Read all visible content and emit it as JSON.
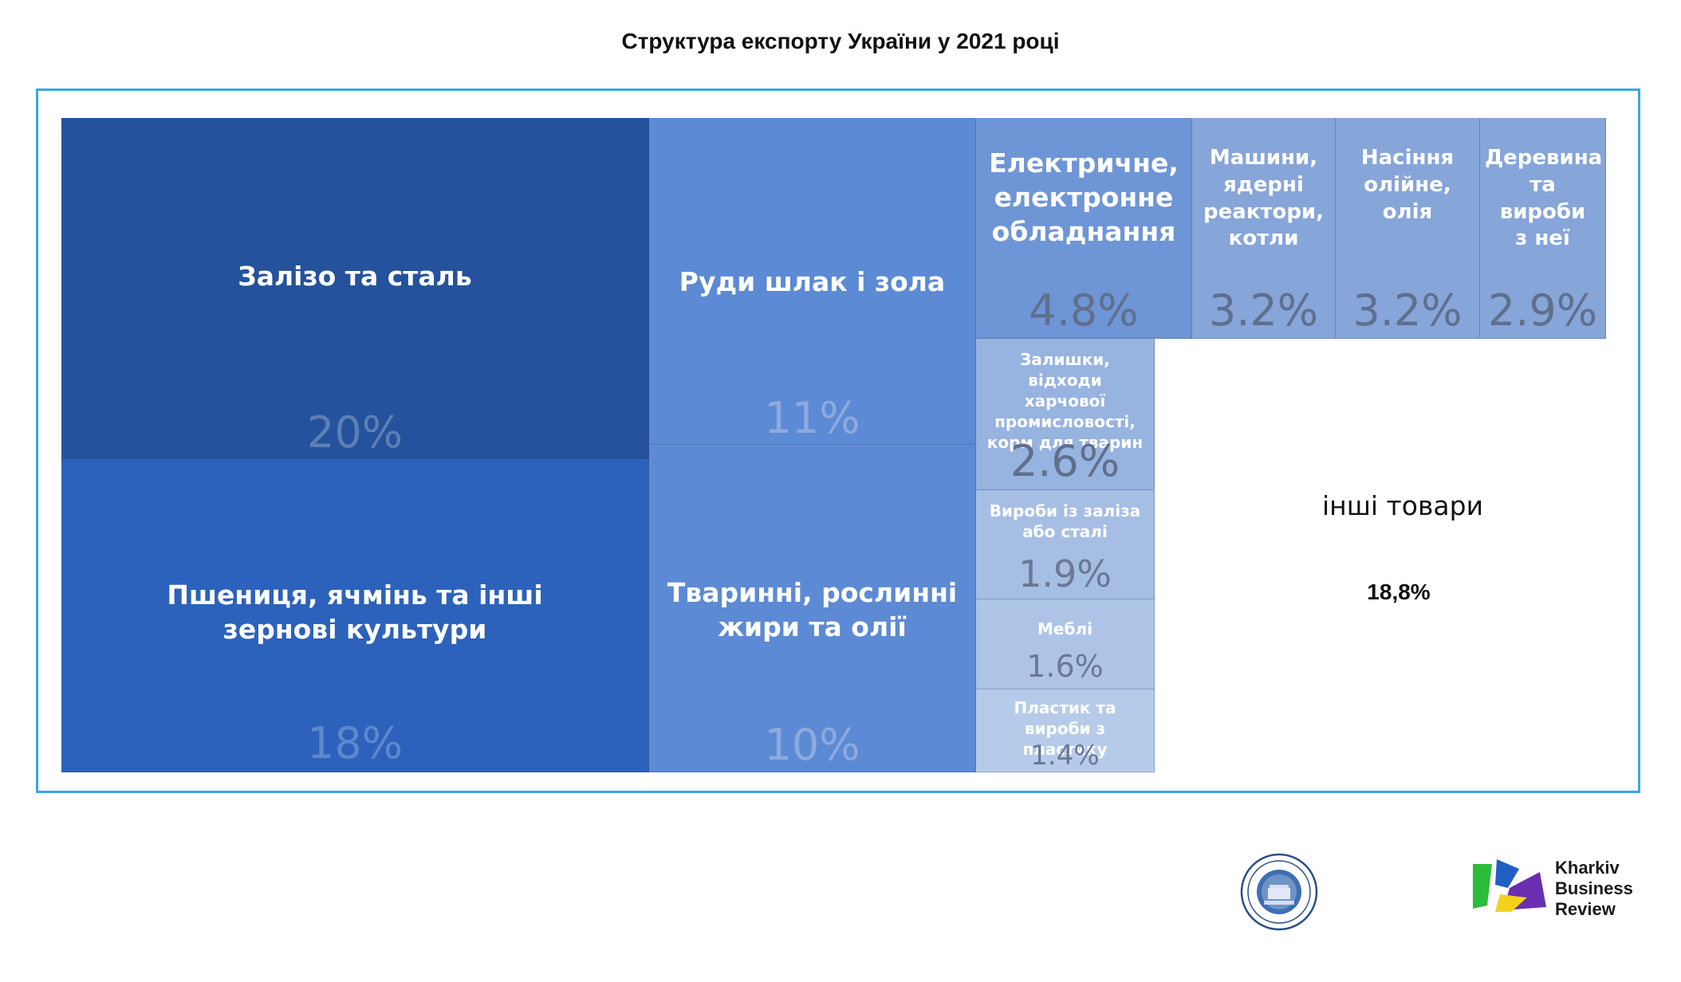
{
  "title": "Структура експорту України у 2021 році",
  "chart_data": {
    "type": "treemap",
    "title": "Структура експорту України у 2021 році",
    "items": [
      {
        "label": "Залізо та сталь",
        "value": 20,
        "value_label": "20%"
      },
      {
        "label": "Пшениця, ячмінь та інші зернові культури",
        "value": 18,
        "value_label": "18%"
      },
      {
        "label": "Руди шлак і зола",
        "value": 11,
        "value_label": "11%"
      },
      {
        "label": "Тваринні, рослинні жири та олії",
        "value": 10,
        "value_label": "10%"
      },
      {
        "label": "Електричне, електронне обладнання",
        "value": 4.8,
        "value_label": "4.8%"
      },
      {
        "label": "Машини, ядерні реактори, котли",
        "value": 3.2,
        "value_label": "3.2%"
      },
      {
        "label": "Насіння олійне, олія",
        "value": 3.2,
        "value_label": "3.2%"
      },
      {
        "label": "Деревина та вироби з неї",
        "value": 2.9,
        "value_label": "2.9%"
      },
      {
        "label": "Залишки, відходи харчової промисловості, корм для тварин",
        "value": 2.6,
        "value_label": "2.6%"
      },
      {
        "label": "Вироби із заліза або сталі",
        "value": 1.9,
        "value_label": "1.9%"
      },
      {
        "label": "Меблі",
        "value": 1.6,
        "value_label": "1.6%"
      },
      {
        "label": "Пластик та вироби з пластику",
        "value": 1.4,
        "value_label": "1.4%"
      }
    ],
    "others": {
      "label": "інші товари",
      "value": 18.8,
      "value_label": "18,8%"
    }
  },
  "logos": {
    "kbr_line1": "Kharkiv",
    "kbr_line2": "Business",
    "kbr_line3": "Review",
    "colors": {
      "green": "#2dbb3a",
      "blue": "#1f5fc4",
      "purple": "#6a2fb0",
      "yellow": "#f2d21b"
    }
  }
}
